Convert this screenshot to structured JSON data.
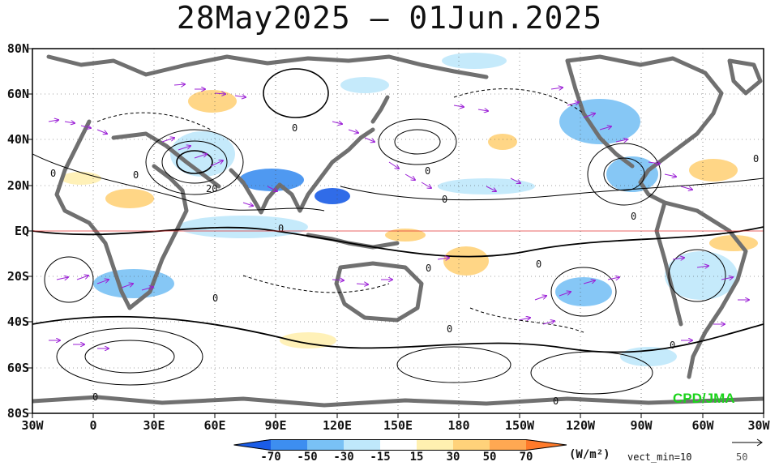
{
  "title": "28May2025 – 01Jun.2025",
  "credit": "CPD/JMA",
  "lat_labels": [
    "80N",
    "60N",
    "40N",
    "20N",
    "EQ",
    "20S",
    "40S",
    "60S",
    "80S"
  ],
  "lon_labels": [
    "30W",
    "0",
    "30E",
    "60E",
    "90E",
    "120E",
    "150E",
    "180",
    "150W",
    "120W",
    "90W",
    "60W",
    "30W"
  ],
  "colorbar": {
    "labels": [
      "-70",
      "-50",
      "-30",
      "-15",
      "15",
      "30",
      "50",
      "70"
    ],
    "colors": [
      "#1a5ce6",
      "#3d8ef0",
      "#79c1f5",
      "#bfe8fb",
      "#ffffff",
      "#fff0b0",
      "#ffd27a",
      "#ffa852",
      "#ff7a2a"
    ],
    "units": "(W/m²)",
    "vect_min": "vect_min=10",
    "ref_vector": "50"
  },
  "colors": {
    "ocean": "#ffffff",
    "coast": "#707070",
    "contour": "#000000",
    "vector": "#9b1fd6",
    "equator": "#e03030",
    "credit": "#1bd31b"
  },
  "contour_labels": [
    "0",
    "0",
    "0",
    "0",
    "0",
    "0",
    "0",
    "0",
    "0",
    "0",
    "0",
    "0",
    "0",
    "0",
    "20",
    "0"
  ]
}
